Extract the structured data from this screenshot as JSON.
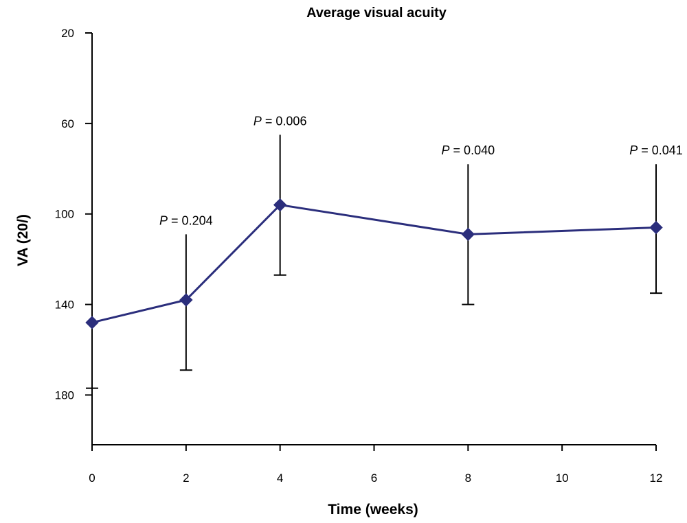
{
  "chart_data": {
    "type": "line",
    "title": "Average visual acuity",
    "xlabel": "Time (weeks)",
    "ylabel": "VA (20/)",
    "x_ticks": [
      0,
      2,
      4,
      6,
      8,
      10,
      12
    ],
    "y_ticks": [
      20,
      60,
      100,
      140,
      180
    ],
    "xlim": [
      0,
      12
    ],
    "ylim": [
      20,
      202
    ],
    "y_inverted": true,
    "grid": false,
    "legend": "none",
    "line_color": "#2b2e7c",
    "series": [
      {
        "x": [
          0,
          2,
          4,
          8,
          12
        ],
        "y": [
          148,
          138,
          96,
          109,
          106
        ],
        "error_upper": [
          null,
          109,
          65,
          78,
          78
        ],
        "error_lower": [
          177,
          169,
          127,
          140,
          135
        ]
      }
    ],
    "annotations": [
      {
        "x": 2,
        "prefix": "P",
        "text": " = 0.204"
      },
      {
        "x": 4,
        "prefix": "P",
        "text": " = 0.006"
      },
      {
        "x": 8,
        "prefix": "P",
        "text": " = 0.040"
      },
      {
        "x": 12,
        "prefix": "P",
        "text": " = 0.041"
      }
    ]
  }
}
